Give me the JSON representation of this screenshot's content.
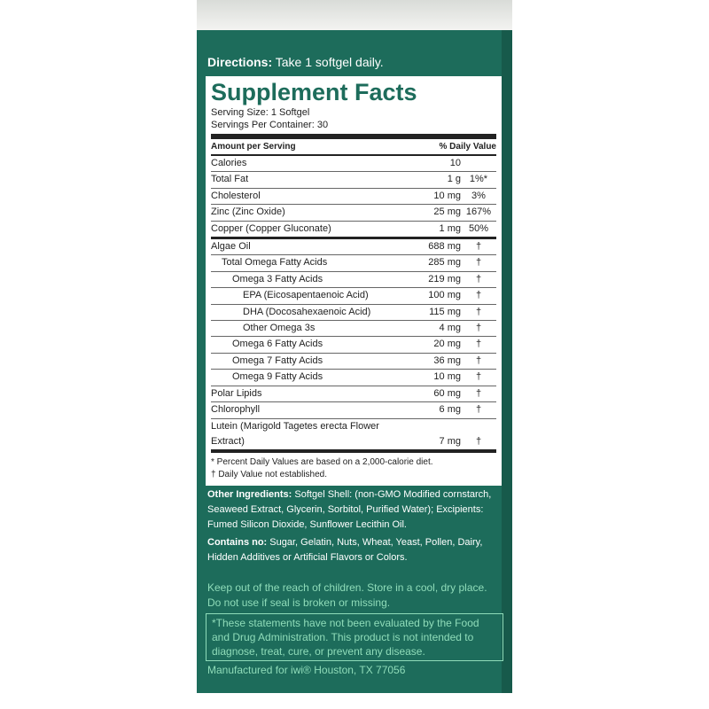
{
  "directions": {
    "label": "Directions:",
    "text": "Take 1 softgel daily."
  },
  "facts": {
    "title": "Supplement Facts",
    "serving_size": "Serving Size: 1 Softgel",
    "servings_per_container": "Servings Per Container: 30",
    "header": {
      "amount": "Amount per Serving",
      "dv": "% Daily Value"
    },
    "rows": [
      {
        "name": "Calories",
        "amount": "10"
      },
      {
        "name": "Total Fat",
        "amount": "1 g",
        "dv": "1%*"
      },
      {
        "name": "Cholesterol",
        "amount": "10 mg",
        "dv": "3%"
      },
      {
        "name": "Zinc (Zinc Oxide)",
        "amount": "25 mg",
        "dv": "167%"
      },
      {
        "name": "Copper (Copper Gluconate)",
        "amount": "1 mg",
        "dv": "50%"
      },
      {
        "name": "Algae Oil",
        "amount": "688 mg",
        "dv": "†",
        "sub": [
          {
            "name": "Total Omega Fatty Acids",
            "amount": "285 mg",
            "dv": "†",
            "sub": [
              {
                "name": "Omega 3 Fatty Acids",
                "amount": "219 mg",
                "dv": "†",
                "sub": [
                  {
                    "name": "EPA (Eicosapentaenoic Acid)",
                    "amount": "100 mg",
                    "dv": "†"
                  },
                  {
                    "name": "DHA (Docosahexaenoic Acid)",
                    "amount": "115 mg",
                    "dv": "†"
                  },
                  {
                    "name": "Other Omega 3s",
                    "amount": "4 mg",
                    "dv": "†"
                  }
                ]
              },
              {
                "name": "Omega 6 Fatty Acids",
                "amount": "20 mg",
                "dv": "†"
              },
              {
                "name": "Omega 7 Fatty Acids",
                "amount": "36 mg",
                "dv": "†"
              },
              {
                "name": "Omega 9 Fatty Acids",
                "amount": "10 mg",
                "dv": "†"
              }
            ]
          }
        ]
      },
      {
        "name": "Polar Lipids",
        "amount": "60 mg",
        "dv": "†"
      },
      {
        "name": "Chlorophyll",
        "amount": "6 mg",
        "dv": "†"
      },
      {
        "name": "Lutein (Marigold Tagetes erecta Flower Extract)",
        "amount": "7 mg",
        "dv": "†"
      }
    ],
    "footnotes": [
      "* Percent Daily Values are based on a 2,000-calorie diet.",
      "† Daily Value not established."
    ]
  },
  "other_ingredients": {
    "label": "Other Ingredients:",
    "text": "Softgel Shell: (non-GMO Modified cornstarch, Seaweed Extract, Glycerin, Sorbitol, Purified Water); Excipients:  Fumed Silicon Dioxide, Sunflower Lecithin Oil."
  },
  "contains_no": {
    "label": "Contains no:",
    "text": "Sugar, Gelatin, Nuts, Wheat, Yeast, Pollen, Dairy, Hidden Additives or Artificial Flavors or Colors."
  },
  "warning": "Keep out of the reach of children. Store in a cool, dry place. Do not use if seal is broken or missing.",
  "disclaimer": "*These statements have not been evaluated by the Food and Drug Administration. This product is not intended to diagnose, treat, cure, or prevent any disease.",
  "manufacturer": "Manufactured for iwi®  Houston, TX 77056"
}
